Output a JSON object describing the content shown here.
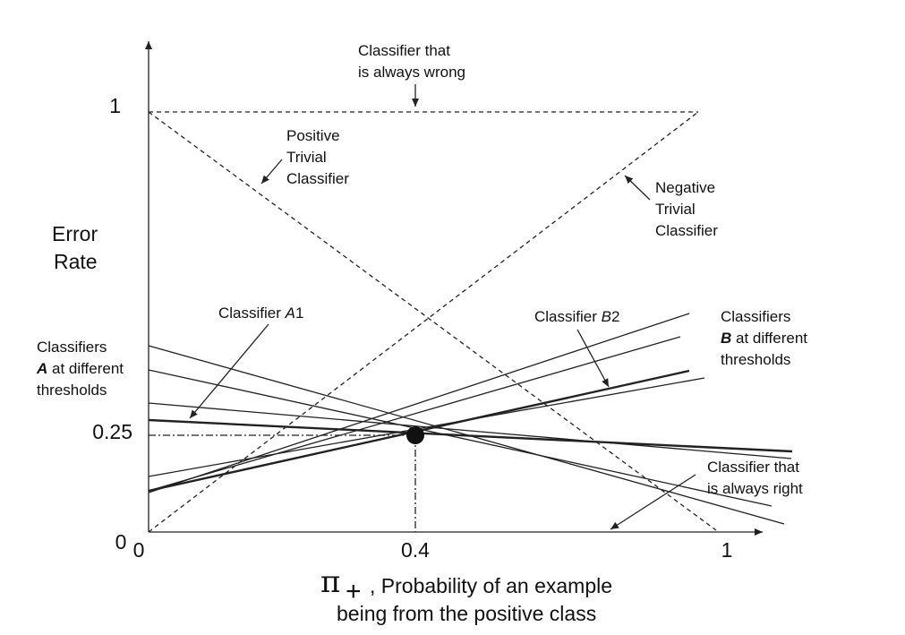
{
  "y_axis": {
    "label": [
      "Error",
      "Rate"
    ],
    "ticks": [
      "0",
      "0.25",
      "1"
    ]
  },
  "x_axis": {
    "symbol": "π",
    "subscript": "+",
    "label": [
      ", Probability of an example",
      "being from the positive class"
    ],
    "ticks": [
      "0",
      "0.4",
      "1"
    ]
  },
  "annotations": {
    "always_wrong": [
      "Classifier that",
      "is always wrong"
    ],
    "positive_trivial": [
      "Positive",
      "Trivial",
      "Classifier"
    ],
    "negative_trivial": [
      "Negative",
      "Trivial",
      "Classifier"
    ],
    "classifier_a1": [
      "Classifier ",
      "A",
      "1"
    ],
    "classifier_b2": [
      "Classifier ",
      "B",
      "2"
    ],
    "classifiers_a": [
      [
        "Classifiers"
      ],
      [
        "A",
        " at different"
      ],
      [
        "thresholds"
      ]
    ],
    "classifiers_b": [
      [
        "Classifiers"
      ],
      [
        "B",
        " at different"
      ],
      [
        "thresholds"
      ]
    ],
    "always_right": [
      "Classifier that",
      "is always right"
    ]
  }
}
